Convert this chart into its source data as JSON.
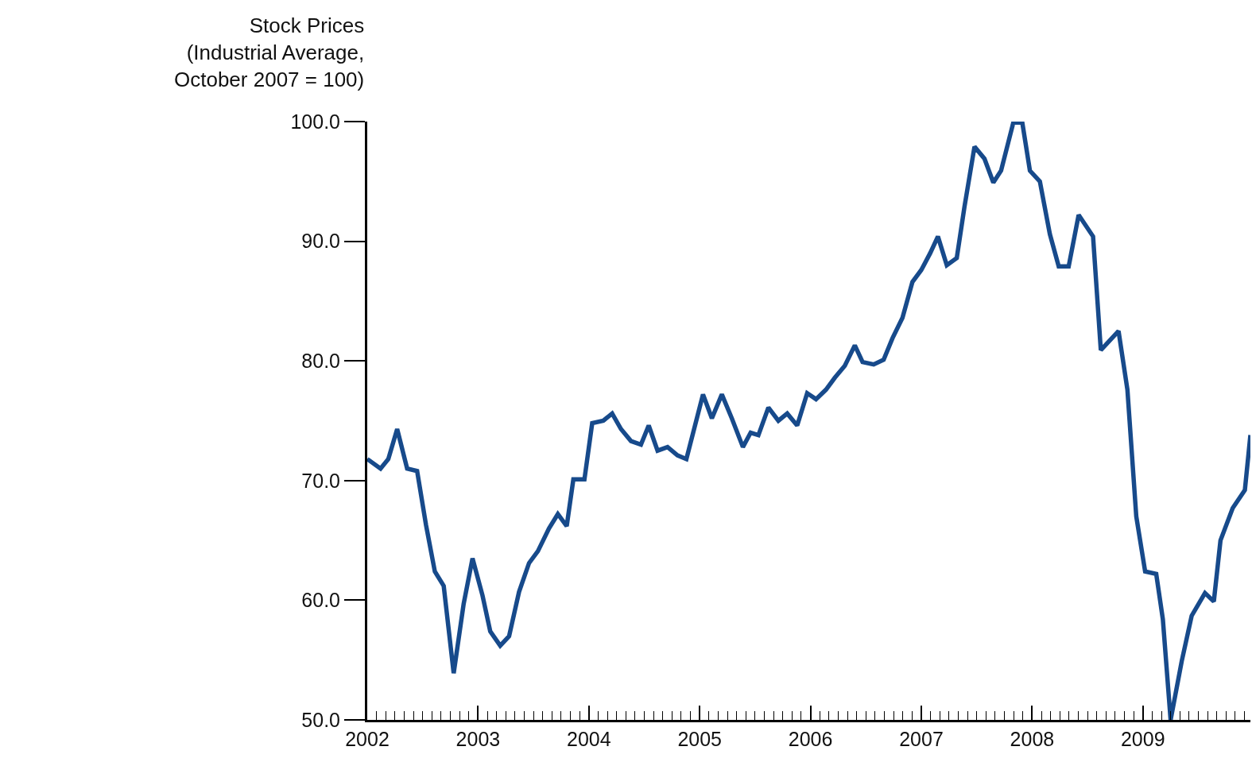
{
  "chart_data": {
    "type": "line",
    "ylabel": "Stock Prices\n(Industrial Average,\nOctober 2007 = 100)",
    "x": [
      2002.0,
      2002.12,
      2002.19,
      2002.27,
      2002.36,
      2002.45,
      2002.53,
      2002.61,
      2002.69,
      2002.78,
      2002.87,
      2002.95,
      2003.04,
      2003.11,
      2003.2,
      2003.28,
      2003.37,
      2003.46,
      2003.54,
      2003.64,
      2003.72,
      2003.8,
      2003.86,
      2003.96,
      2004.03,
      2004.13,
      2004.21,
      2004.29,
      2004.38,
      2004.47,
      2004.54,
      2004.62,
      2004.71,
      2004.8,
      2004.88,
      2005.03,
      2005.11,
      2005.2,
      2005.29,
      2005.39,
      2005.46,
      2005.53,
      2005.62,
      2005.71,
      2005.79,
      2005.88,
      2005.97,
      2006.05,
      2006.14,
      2006.22,
      2006.31,
      2006.4,
      2006.47,
      2006.57,
      2006.66,
      2006.74,
      2006.83,
      2006.92,
      2007.0,
      2007.08,
      2007.15,
      2007.23,
      2007.32,
      2007.39,
      2007.48,
      2007.57,
      2007.65,
      2007.72,
      2007.83,
      2007.91,
      2007.98,
      2008.07,
      2008.16,
      2008.24,
      2008.33,
      2008.42,
      2008.55,
      2008.62,
      2008.69,
      2008.78,
      2008.86,
      2008.94,
      2009.02,
      2009.12,
      2009.18,
      2009.25,
      2009.35,
      2009.44,
      2009.56,
      2009.64,
      2009.7,
      2009.81,
      2009.92,
      2009.97
    ],
    "series": [
      {
        "color": "#174a8b",
        "values": [
          71.8,
          71.0,
          71.8,
          74.3,
          71.0,
          70.8,
          66.3,
          62.4,
          61.2,
          53.9,
          59.7,
          63.5,
          60.4,
          57.4,
          56.2,
          57.0,
          60.7,
          63.1,
          64.1,
          66.0,
          67.2,
          66.2,
          70.1,
          70.1,
          74.8,
          75.0,
          75.6,
          74.3,
          73.3,
          73.0,
          74.6,
          72.5,
          72.8,
          72.1,
          71.8,
          77.2,
          75.2,
          77.2,
          75.2,
          72.8,
          74.0,
          73.8,
          76.1,
          75.0,
          75.6,
          74.6,
          77.3,
          76.8,
          77.6,
          78.6,
          79.6,
          81.3,
          79.9,
          79.7,
          80.1,
          81.9,
          83.6,
          86.6,
          87.6,
          89.0,
          90.4,
          88.0,
          88.6,
          92.9,
          97.9,
          96.9,
          94.9,
          95.9,
          99.9,
          100.0,
          95.9,
          95.0,
          90.6,
          87.9,
          87.9,
          92.2,
          90.4,
          80.9,
          81.6,
          82.5,
          77.6,
          67.0,
          62.4,
          62.2,
          58.4,
          50.0,
          54.9,
          58.7,
          60.6,
          59.9,
          65.0,
          67.7,
          69.2,
          73.8
        ]
      }
    ],
    "xlim": [
      2002,
      2009.97
    ],
    "xticks": [
      2002,
      2003,
      2004,
      2005,
      2006,
      2007,
      2008,
      2009
    ],
    "ylim": [
      50,
      100
    ],
    "yticks": [
      {
        "value": 50,
        "label": "50.0"
      },
      {
        "value": 60,
        "label": "60.0"
      },
      {
        "value": 70,
        "label": "70.0"
      },
      {
        "value": 80,
        "label": "80.0"
      },
      {
        "value": 90,
        "label": "90.0"
      },
      {
        "value": 100,
        "label": "100.0"
      }
    ],
    "marker": "none",
    "line_style": "solid"
  }
}
